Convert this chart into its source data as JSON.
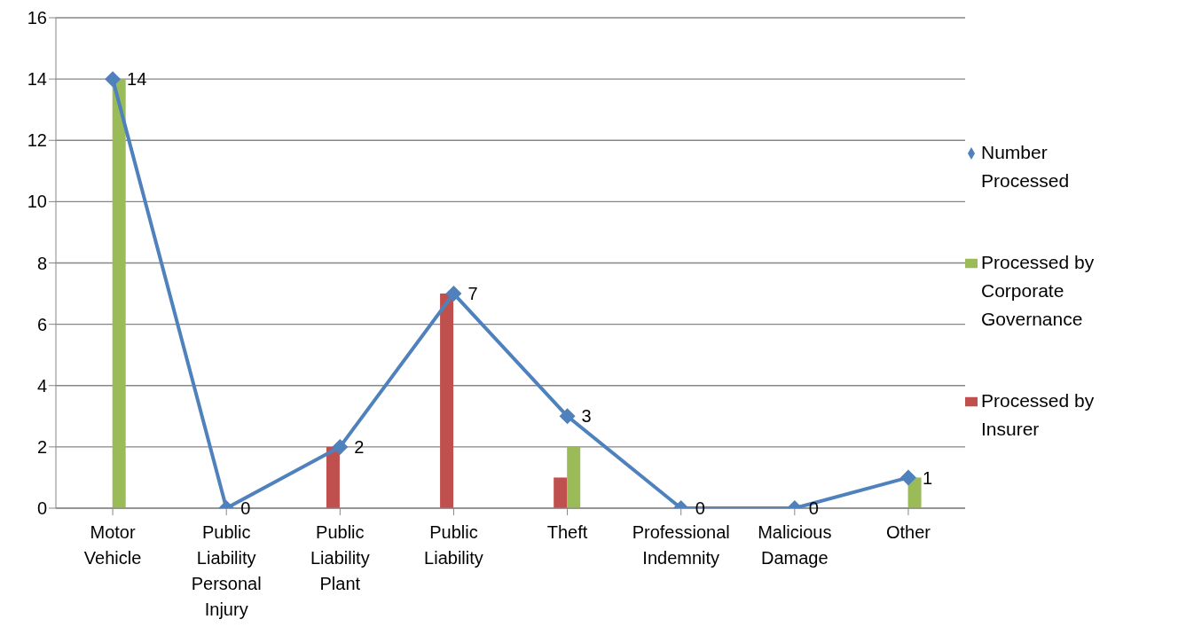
{
  "chart_data": {
    "type": "bar",
    "categories": [
      "Motor Vehicle",
      "Public Liability Personal Injury",
      "Public Liability Plant",
      "Public Liability",
      "Theft",
      "Professional Indemnity",
      "Malicious Damage",
      "Other"
    ],
    "series": [
      {
        "name": "Processed by Insurer",
        "color": "#c0504d",
        "values": [
          0,
          0,
          2,
          7,
          1,
          0,
          0,
          0
        ]
      },
      {
        "name": "Processed by Corporate Governance",
        "color": "#9bbb59",
        "values": [
          14,
          0,
          0,
          0,
          2,
          0,
          0,
          1
        ]
      },
      {
        "name": "Number Processed",
        "type": "line",
        "color": "#4f81bd",
        "marker": "diamond",
        "line_style": "solid",
        "values": [
          14,
          0,
          2,
          7,
          3,
          0,
          0,
          1
        ],
        "value_labels": [
          "14",
          "0",
          "2",
          "7",
          "3",
          "0",
          "0",
          "1"
        ]
      }
    ],
    "ylim": [
      0,
      16
    ],
    "yticks": [
      0,
      2,
      4,
      6,
      8,
      10,
      12,
      14,
      16
    ],
    "grid": "y",
    "legend": "right"
  }
}
